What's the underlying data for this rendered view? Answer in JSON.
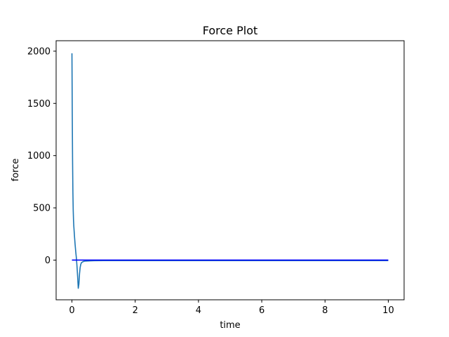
{
  "chart_data": {
    "type": "line",
    "title": "Force Plot",
    "xlabel": "time",
    "ylabel": "force",
    "xlim": [
      -0.5,
      10.5
    ],
    "ylim": [
      -380,
      2100
    ],
    "xticks": [
      0,
      2,
      4,
      6,
      8,
      10
    ],
    "yticks": [
      0,
      500,
      1000,
      1500,
      2000
    ],
    "grid": false,
    "legend": "none",
    "series": [
      {
        "color": "#1f77b4",
        "x": [
          0,
          0.01,
          0.02,
          0.03,
          0.04,
          0.05,
          0.06,
          0.08,
          0.1,
          0.12,
          0.14,
          0.16,
          0.18,
          0.2,
          0.22,
          0.24,
          0.26,
          0.28,
          0.3,
          0.35,
          0.4,
          0.5,
          0.7,
          1,
          2,
          3,
          4,
          5,
          6,
          7,
          8,
          9,
          10
        ],
        "y": [
          1980,
          1400,
          950,
          650,
          480,
          380,
          320,
          230,
          150,
          80,
          20,
          -60,
          -160,
          -270,
          -230,
          -130,
          -70,
          -40,
          -25,
          -15,
          -10,
          -8,
          -6,
          -5,
          -5,
          -5,
          -5,
          -5,
          -5,
          -5,
          -5,
          -5,
          -5
        ]
      },
      {
        "color": "#0000ff",
        "x": [
          0,
          0.05,
          0.1,
          0.5,
          1,
          2,
          4,
          6,
          8,
          10
        ],
        "y": [
          0,
          0,
          0,
          0,
          0,
          0,
          0,
          0,
          0,
          0
        ]
      }
    ]
  }
}
